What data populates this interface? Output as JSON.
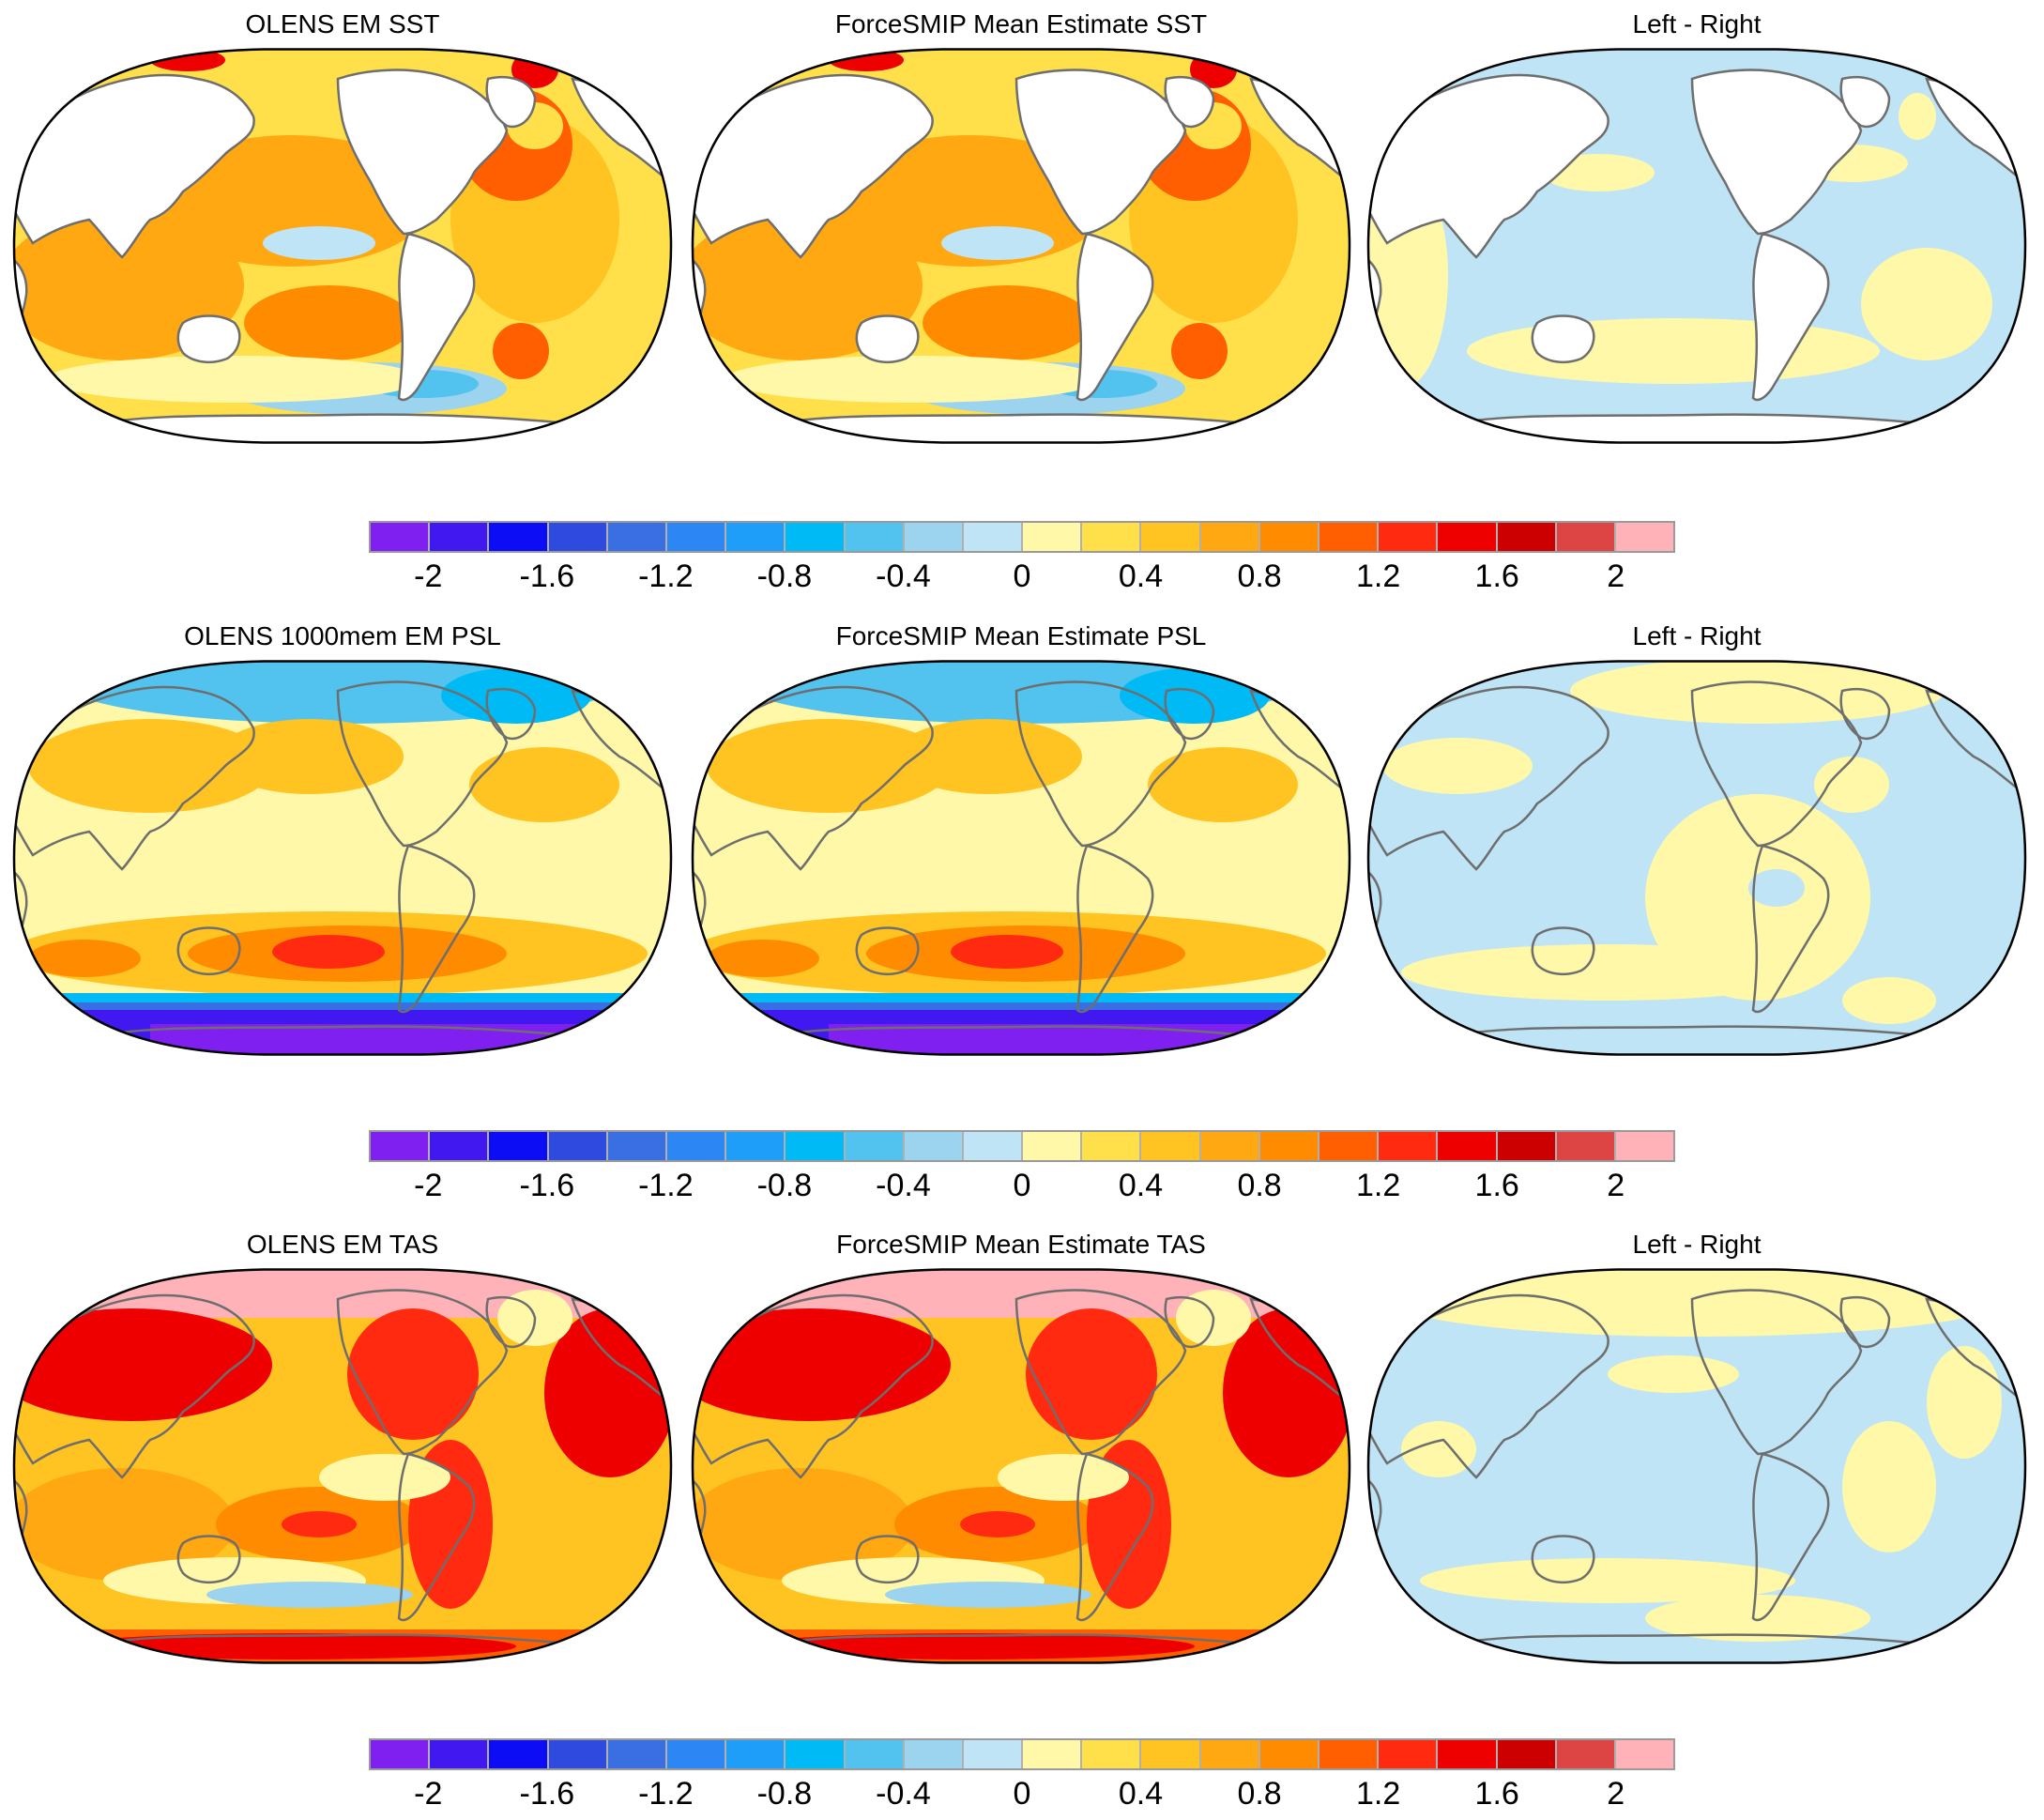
{
  "colors": {
    "palette": [
      "#7f1ff0",
      "#4118f0",
      "#0c0cf5",
      "#2f4adf",
      "#3a6fe4",
      "#2c87f5",
      "#1e9ef8",
      "#00baf5",
      "#52c3ee",
      "#9cd3ee",
      "#bfe4f5",
      "#fff8a8",
      "#ffe04a",
      "#ffc322",
      "#ffa812",
      "#ff8c00",
      "#ff5f00",
      "#ff2a10",
      "#ee0000",
      "#cc0000",
      "#dd4444",
      "#ffb3b8"
    ],
    "land": "#ffffff",
    "coastline": "#6e6e6e",
    "border": "#000000"
  },
  "colorbar": {
    "labels": [
      "-2",
      "-1.6",
      "-1.2",
      "-0.8",
      "-0.4",
      "0",
      "0.4",
      "0.8",
      "1.2",
      "1.6",
      "2"
    ]
  },
  "rows": [
    {
      "variable": "SST",
      "panels": [
        {
          "title": "OLENS EM SST",
          "kind": "field"
        },
        {
          "title": "ForceSMIP Mean Estimate SST",
          "kind": "field"
        },
        {
          "title": "Left - Right",
          "kind": "diff"
        }
      ]
    },
    {
      "variable": "PSL",
      "panels": [
        {
          "title": "OLENS 1000mem EM PSL",
          "kind": "field"
        },
        {
          "title": "ForceSMIP Mean Estimate PSL",
          "kind": "field"
        },
        {
          "title": "Left - Right",
          "kind": "diff"
        }
      ]
    },
    {
      "variable": "TAS",
      "panels": [
        {
          "title": "OLENS EM TAS",
          "kind": "field"
        },
        {
          "title": "ForceSMIP Mean Estimate TAS",
          "kind": "field"
        },
        {
          "title": "Left - Right",
          "kind": "diff"
        }
      ]
    }
  ]
}
